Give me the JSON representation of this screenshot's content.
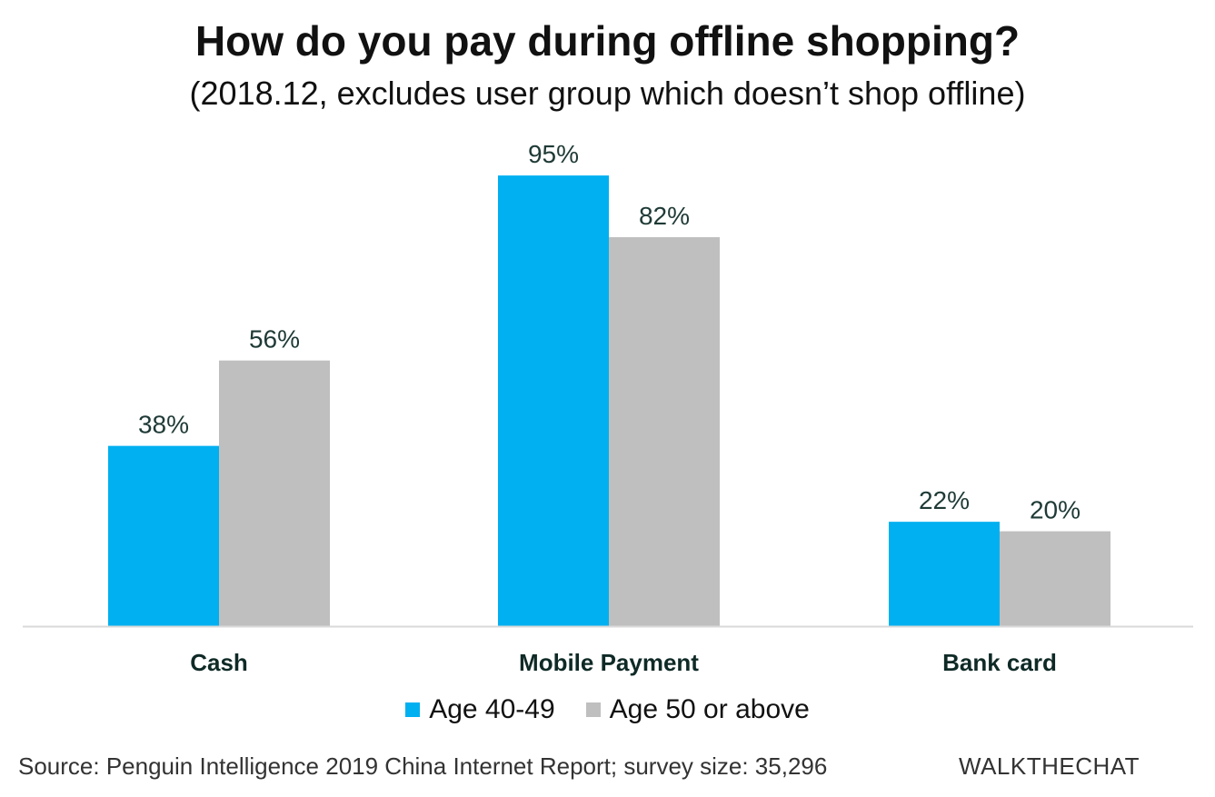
{
  "title": "How do you pay during offline shopping?",
  "subtitle": "(2018.12, excludes user group which doesn’t shop offline)",
  "colors": {
    "series_1": "#00B0F0",
    "series_2": "#BFBFBF",
    "axis": "#D9D9D9",
    "label_text": "#1f3a36",
    "category_text": "#0f2a26"
  },
  "chart_data": {
    "type": "bar",
    "categories": [
      "Cash",
      "Mobile Payment",
      "Bank card"
    ],
    "series": [
      {
        "name": "Age 40-49",
        "values": [
          38,
          95,
          22
        ],
        "labels": [
          "38%",
          "95%",
          "22%"
        ]
      },
      {
        "name": "Age 50 or above",
        "values": [
          56,
          82,
          20
        ],
        "labels": [
          "56%",
          "82%",
          "20%"
        ]
      }
    ],
    "ylim": [
      0,
      100
    ],
    "grid": false,
    "legend_position": "bottom"
  },
  "footer": {
    "source": "Source: Penguin Intelligence 2019 China Internet Report; survey size: 35,296",
    "brand": "WALKTHECHAT"
  }
}
